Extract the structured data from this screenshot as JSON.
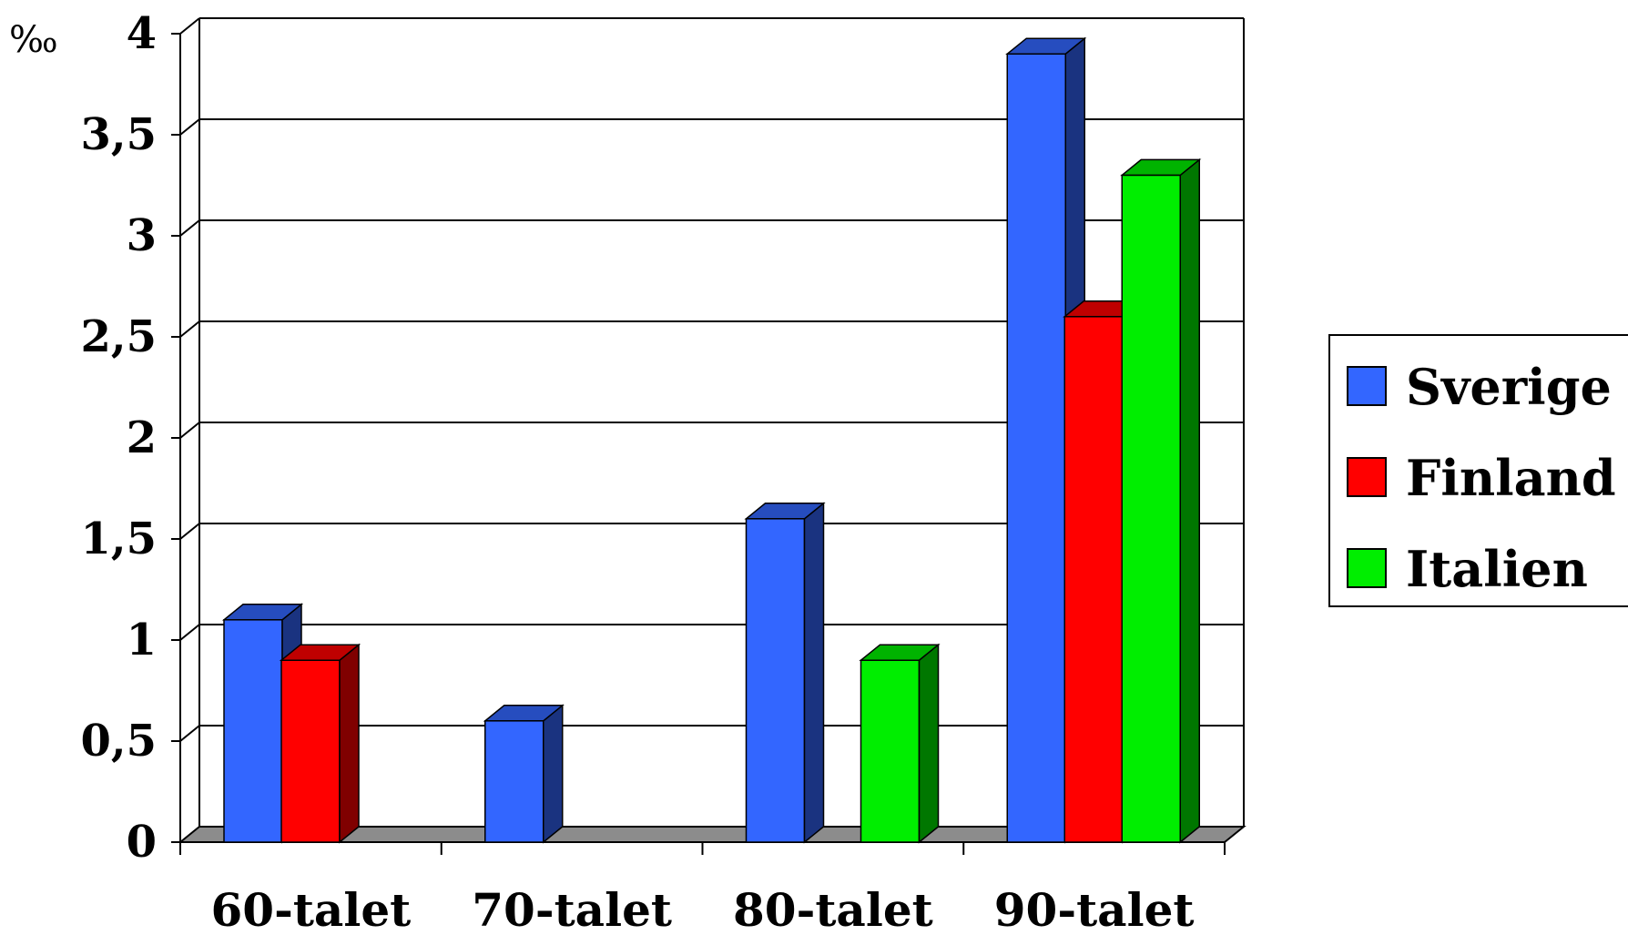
{
  "chart_data": {
    "type": "bar",
    "unit_label": "‰",
    "categories": [
      "60-talet",
      "70-talet",
      "80-talet",
      "90-talet"
    ],
    "y_ticks": [
      "0",
      "0,5",
      "1",
      "1,5",
      "2",
      "2,5",
      "3",
      "3,5",
      "4"
    ],
    "ylim": [
      0,
      4
    ],
    "grid": true,
    "legend_position": "right",
    "series": [
      {
        "name": "Sverige",
        "color": "#3366FF",
        "values": [
          1.1,
          0.6,
          1.6,
          3.9
        ]
      },
      {
        "name": "Finland",
        "color": "#FF0000",
        "values": [
          0.9,
          null,
          null,
          2.6
        ]
      },
      {
        "name": "Italien",
        "color": "#00EE00",
        "values": [
          null,
          null,
          0.9,
          3.3
        ]
      }
    ]
  }
}
